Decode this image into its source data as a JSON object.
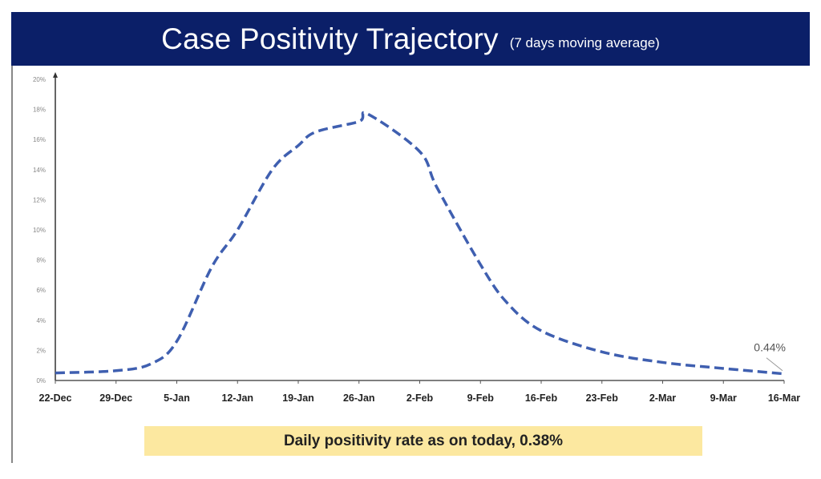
{
  "header": {
    "title": "Case Positivity Trajectory",
    "subtitle": "(7 days moving average)"
  },
  "footer": {
    "text": "Daily positivity rate as on today, 0.38%"
  },
  "colors": {
    "header_bg": "#0b1f68",
    "line": "#3f5fb0",
    "footer_bg": "#fce8a0"
  },
  "chart_data": {
    "type": "line",
    "title": "Case Positivity Trajectory",
    "subtitle": "(7 days moving average)",
    "xlabel": "",
    "ylabel": "",
    "ylim": [
      0,
      20
    ],
    "yticks": [
      "0%",
      "2%",
      "4%",
      "6%",
      "8%",
      "10%",
      "12%",
      "14%",
      "16%",
      "18%",
      "20%"
    ],
    "xticks": [
      "22-Dec",
      "29-Dec",
      "5-Jan",
      "12-Jan",
      "19-Jan",
      "26-Jan",
      "2-Feb",
      "9-Feb",
      "16-Feb",
      "23-Feb",
      "2-Mar",
      "9-Mar",
      "16-Mar"
    ],
    "grid": false,
    "line_style": "dashed",
    "series": [
      {
        "x": [
          "22-Dec",
          "29-Dec",
          "2-Jan",
          "5-Jan",
          "9-Jan",
          "12-Jan",
          "16-Jan",
          "19-Jan",
          "21-Jan",
          "26-Jan",
          "27-Jan",
          "2-Feb",
          "4-Feb",
          "9-Feb",
          "12-Feb",
          "16-Feb",
          "23-Feb",
          "2-Mar",
          "9-Mar",
          "16-Mar"
        ],
        "values": [
          0.5,
          0.65,
          1.1,
          2.6,
          7.5,
          10.0,
          14.0,
          15.6,
          16.5,
          17.2,
          17.7,
          15.2,
          12.8,
          7.7,
          5.2,
          3.3,
          1.9,
          1.2,
          0.8,
          0.44
        ]
      }
    ],
    "annotations": [
      {
        "text": "0.44%",
        "at": "16-Mar"
      }
    ]
  }
}
